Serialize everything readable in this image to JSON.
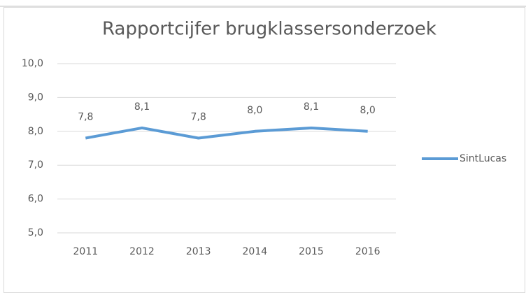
{
  "chart_data": {
    "type": "line",
    "title": "Rapportcijfer brugklassersonderzoek",
    "categories": [
      "2011",
      "2012",
      "2013",
      "2014",
      "2015",
      "2016"
    ],
    "series": [
      {
        "name": "SintLucas",
        "color": "#5b9bd5",
        "values": [
          7.8,
          8.1,
          7.8,
          8.0,
          8.1,
          8.0
        ],
        "value_labels": [
          "7,8",
          "8,1",
          "7,8",
          "8,0",
          "8,1",
          "8,0"
        ]
      }
    ],
    "ylim": [
      5,
      10
    ],
    "yticks": [
      {
        "value": 5,
        "label": "5,0"
      },
      {
        "value": 6,
        "label": "6,0"
      },
      {
        "value": 7,
        "label": "7,0"
      },
      {
        "value": 8,
        "label": "8,0"
      },
      {
        "value": 9,
        "label": "9,0"
      },
      {
        "value": 10,
        "label": "10,0"
      }
    ],
    "grid": true,
    "legend": "right"
  }
}
